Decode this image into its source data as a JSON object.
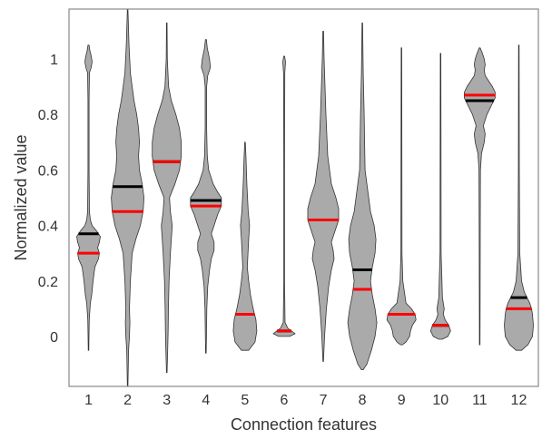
{
  "chart_data": {
    "type": "violin",
    "title": "",
    "xlabel": "Connection features",
    "ylabel": "Normalized value",
    "ylim": [
      -0.18,
      1.18
    ],
    "yticks": [
      0,
      0.2,
      0.4,
      0.6,
      0.8,
      1
    ],
    "grid": false,
    "legend": "none",
    "categories": [
      "1",
      "2",
      "3",
      "4",
      "5",
      "6",
      "7",
      "8",
      "9",
      "10",
      "11",
      "12"
    ],
    "mean": [
      0.3,
      0.45,
      0.63,
      0.47,
      0.08,
      0.02,
      0.42,
      0.17,
      0.08,
      0.04,
      0.87,
      0.1
    ],
    "median": [
      0.37,
      0.54,
      0.63,
      0.49,
      0.08,
      0.02,
      0.42,
      0.24,
      0.08,
      0.04,
      0.85,
      0.14
    ],
    "min": [
      -0.05,
      -0.18,
      -0.13,
      -0.06,
      -0.05,
      0.0,
      -0.09,
      -0.12,
      -0.03,
      -0.01,
      -0.03,
      -0.05
    ],
    "max": [
      1.05,
      1.18,
      1.13,
      1.07,
      0.7,
      1.01,
      1.1,
      1.13,
      1.04,
      1.02,
      1.04,
      1.05
    ],
    "colors": {
      "violin": "#aaaaaa",
      "outline": "#333333",
      "mean": "#ff0000",
      "median": "#000000",
      "axis": "#888888"
    }
  }
}
